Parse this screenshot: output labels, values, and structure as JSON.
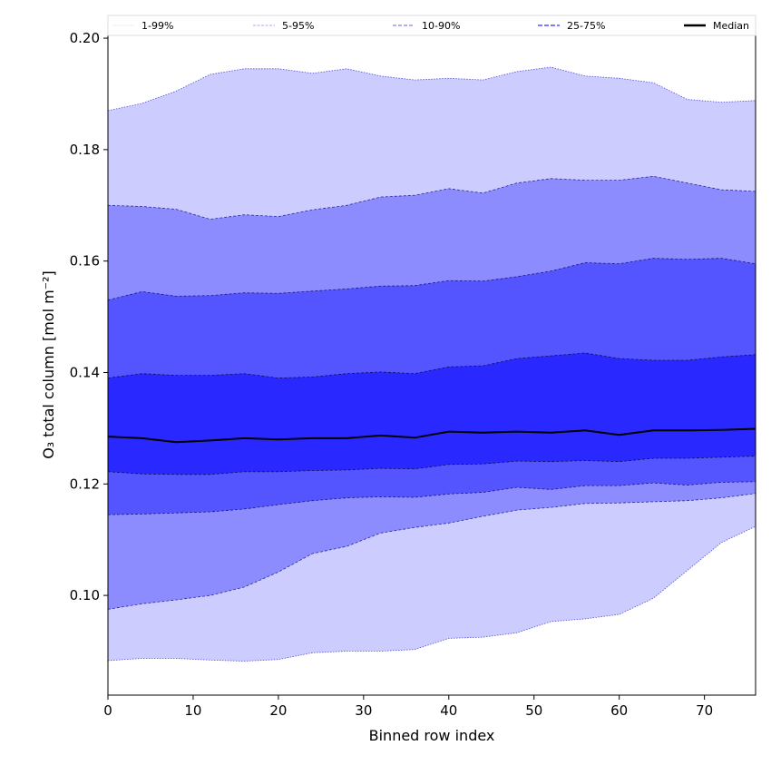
{
  "chart_data": {
    "type": "area",
    "title": "",
    "xlabel": "Binned row index",
    "ylabel": "O₃ total column [mol m⁻²]",
    "xlim": [
      0,
      76
    ],
    "ylim": [
      0.0821,
      0.2005
    ],
    "x_ticks": [
      0,
      10,
      20,
      30,
      40,
      50,
      60,
      70
    ],
    "x_tick_labels": [
      "0",
      "10",
      "20",
      "30",
      "40",
      "50",
      "60",
      "70"
    ],
    "y_ticks": [
      0.1,
      0.12,
      0.14,
      0.16,
      0.18,
      0.2
    ],
    "y_tick_labels": [
      "0.10",
      "0.12",
      "0.14",
      "0.16",
      "0.18",
      "0.20"
    ],
    "grid": false,
    "legend_placement": "top, above axes",
    "legend": [
      "1-99%",
      "5-95%",
      "10-90%",
      "25-75%",
      "Median"
    ],
    "x": [
      0,
      4,
      8,
      12,
      16,
      20,
      24,
      28,
      32,
      36,
      40,
      44,
      48,
      52,
      56,
      60,
      64,
      68,
      72,
      76
    ],
    "percentiles": {
      "p1": [
        0.0883,
        0.0887,
        0.0887,
        0.0884,
        0.0882,
        0.0885,
        0.0897,
        0.09,
        0.09,
        0.0903,
        0.0923,
        0.0925,
        0.0933,
        0.0953,
        0.0958,
        0.0966,
        0.0995,
        0.1045,
        0.1095,
        0.1124
      ],
      "p5": [
        0.0975,
        0.0985,
        0.0992,
        0.1,
        0.1015,
        0.1042,
        0.1075,
        0.1088,
        0.1112,
        0.1122,
        0.113,
        0.1142,
        0.1153,
        0.1158,
        0.1165,
        0.1166,
        0.1168,
        0.117,
        0.1175,
        0.1183
      ],
      "p10": [
        0.1145,
        0.1146,
        0.1148,
        0.115,
        0.1155,
        0.1163,
        0.117,
        0.1175,
        0.1177,
        0.1176,
        0.1182,
        0.1185,
        0.1194,
        0.119,
        0.1197,
        0.1197,
        0.1202,
        0.1198,
        0.1203,
        0.1204
      ],
      "p25": [
        0.1222,
        0.1218,
        0.1217,
        0.1217,
        0.1222,
        0.1222,
        0.1224,
        0.1225,
        0.1228,
        0.1227,
        0.1235,
        0.1236,
        0.1241,
        0.124,
        0.1242,
        0.124,
        0.1246,
        0.1246,
        0.1248,
        0.125
      ],
      "p50": [
        0.1285,
        0.1282,
        0.1275,
        0.1278,
        0.1282,
        0.128,
        0.1282,
        0.1282,
        0.1287,
        0.1283,
        0.1294,
        0.1292,
        0.1294,
        0.1292,
        0.1296,
        0.1288,
        0.1296,
        0.1296,
        0.1297,
        0.1299
      ],
      "p75": [
        0.139,
        0.1398,
        0.1395,
        0.1395,
        0.1398,
        0.139,
        0.1392,
        0.1398,
        0.1401,
        0.1398,
        0.141,
        0.1412,
        0.1425,
        0.143,
        0.1435,
        0.1425,
        0.1422,
        0.1422,
        0.1428,
        0.1432
      ],
      "p90": [
        0.153,
        0.1545,
        0.1537,
        0.1538,
        0.1543,
        0.1542,
        0.1546,
        0.155,
        0.1555,
        0.1556,
        0.1565,
        0.1564,
        0.1572,
        0.1582,
        0.1597,
        0.1595,
        0.1605,
        0.1603,
        0.1605,
        0.1595
      ],
      "p95": [
        0.17,
        0.1698,
        0.1693,
        0.1675,
        0.1683,
        0.168,
        0.1692,
        0.17,
        0.1715,
        0.1718,
        0.173,
        0.1722,
        0.174,
        0.1748,
        0.1745,
        0.1745,
        0.1752,
        0.174,
        0.1728,
        0.1725
      ],
      "p99": [
        0.187,
        0.1883,
        0.1905,
        0.1935,
        0.1945,
        0.1945,
        0.1937,
        0.1945,
        0.1932,
        0.1925,
        0.1928,
        0.1925,
        0.194,
        0.1948,
        0.1932,
        0.1928,
        0.192,
        0.189,
        0.1885,
        0.1888
      ]
    },
    "bands": [
      {
        "name": "1-99%",
        "lower": "p1",
        "upper": "p99",
        "fill": "#ccccff",
        "edge": "#5050e0"
      },
      {
        "name": "5-95%",
        "lower": "p5",
        "upper": "p95",
        "fill": "#8c8cff",
        "edge": "#2a2aa0"
      },
      {
        "name": "10-90%",
        "lower": "p10",
        "upper": "p90",
        "fill": "#5555ff",
        "edge": "#1a1a80"
      },
      {
        "name": "25-75%",
        "lower": "p25",
        "upper": "p75",
        "fill": "#2929ff",
        "edge": "#101060"
      }
    ],
    "median": {
      "name": "Median",
      "key": "p50",
      "color": "#000000"
    }
  }
}
